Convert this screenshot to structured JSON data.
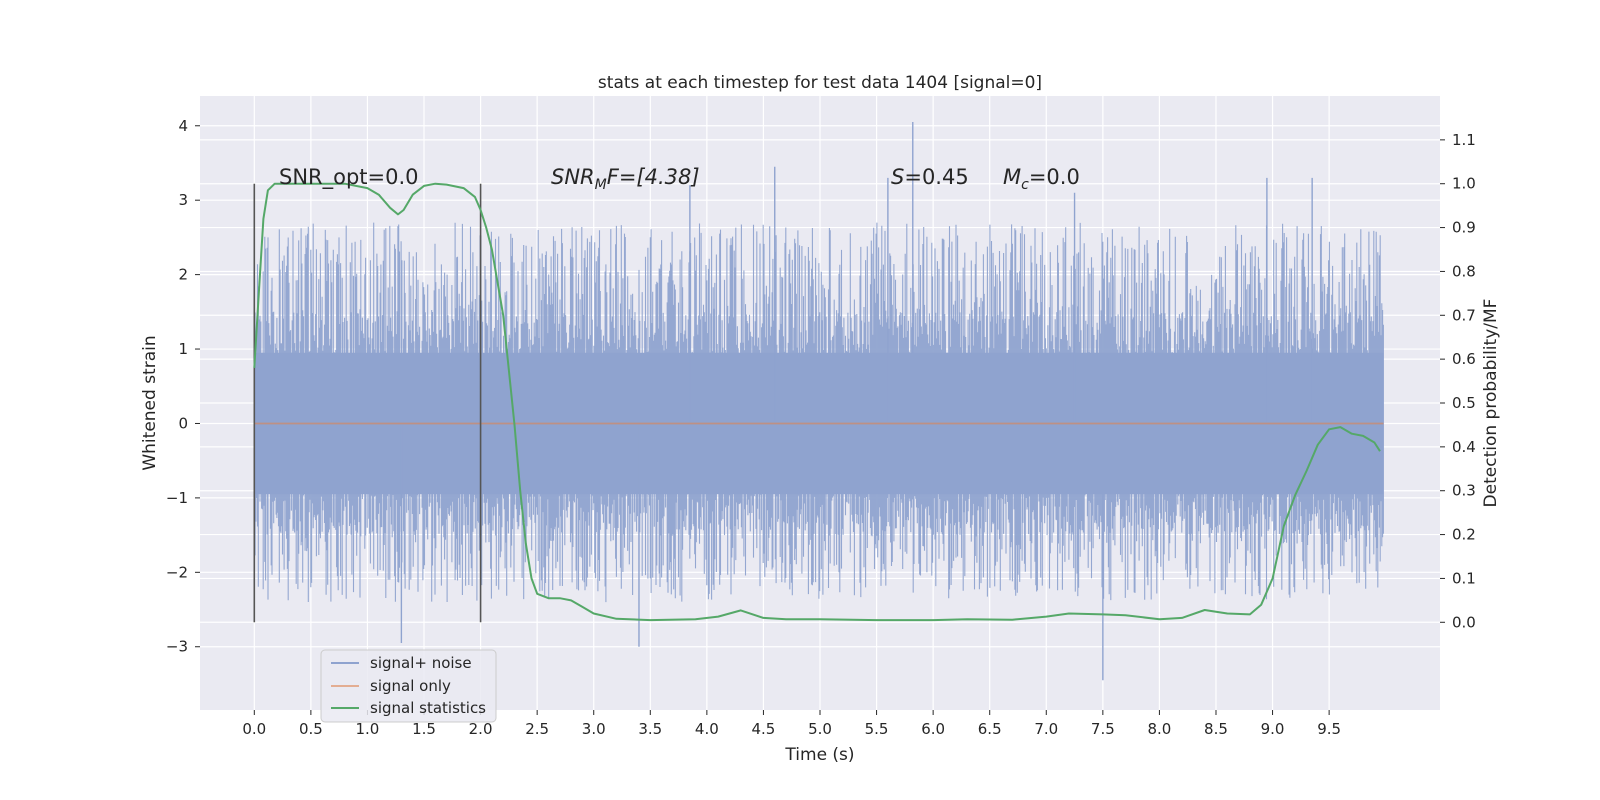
{
  "chart_data": {
    "type": "line",
    "title": "stats at each timestep for test data 1404 [signal=0]",
    "xlabel": "Time (s)",
    "ylabel": "Whitened strain",
    "ylabel_right": "Detection probability/MF",
    "xlim": [
      -0.48,
      10.48
    ],
    "ylim": [
      -3.85,
      4.4
    ],
    "ylim_right": [
      -0.2,
      1.2
    ],
    "xticks": [
      0.0,
      0.5,
      1.0,
      1.5,
      2.0,
      2.5,
      3.0,
      3.5,
      4.0,
      4.5,
      5.0,
      5.5,
      6.0,
      6.5,
      7.0,
      7.5,
      8.0,
      8.5,
      9.0,
      9.5
    ],
    "xtick_labels": [
      "0.0",
      "0.5",
      "1.0",
      "1.5",
      "2.0",
      "2.5",
      "3.0",
      "3.5",
      "4.0",
      "4.5",
      "5.0",
      "5.5",
      "6.0",
      "6.5",
      "7.0",
      "7.5",
      "8.0",
      "8.5",
      "9.0",
      "9.5"
    ],
    "yticks": [
      -3,
      -2,
      -1,
      0,
      1,
      2,
      3,
      4
    ],
    "ytick_labels": [
      "−3",
      "−2",
      "−1",
      "0",
      "1",
      "2",
      "3",
      "4"
    ],
    "yticks_right": [
      0.0,
      0.1,
      0.2,
      0.3,
      0.4,
      0.5,
      0.6,
      0.7,
      0.8,
      0.9,
      1.0,
      1.1
    ],
    "ytick_labels_right": [
      "0.0",
      "0.1",
      "0.2",
      "0.3",
      "0.4",
      "0.5",
      "0.6",
      "0.7",
      "0.8",
      "0.9",
      "1.0",
      "1.1"
    ],
    "grid": true,
    "legend_position": "lower-left",
    "background": "#eaeaf2",
    "colors": {
      "signal_noise": "#8fa3cf",
      "signal_only": "#dd8452",
      "statistics": "#55a868",
      "vlines": "#555555"
    },
    "annotations": {
      "snr_opt": "SNR_opt=0.0",
      "snr_mf_main": "SNR",
      "snr_mf_sub": "M",
      "snr_mf_rest": "F=[4.38]",
      "s_main": "S",
      "s_rest": "=0.45",
      "mc_main": "M",
      "mc_sub": "c",
      "mc_rest": "=0.0"
    },
    "series": [
      {
        "name": "signal+ noise",
        "kind": "noise_envelope",
        "x_range": [
          0.0,
          9.98
        ],
        "body_range": [
          -0.95,
          0.95
        ],
        "typical_range": [
          -1.5,
          1.5
        ],
        "outer_range": [
          -2.4,
          2.7
        ],
        "peaks": [
          {
            "x": 5.82,
            "y": 4.05
          },
          {
            "x": 7.5,
            "y": -3.45
          },
          {
            "x": 1.3,
            "y": -2.95
          },
          {
            "x": 3.4,
            "y": -3.0
          },
          {
            "x": 4.6,
            "y": 3.45
          },
          {
            "x": 9.35,
            "y": 3.3
          },
          {
            "x": 8.95,
            "y": 3.3
          },
          {
            "x": 5.6,
            "y": 3.3
          },
          {
            "x": 3.85,
            "y": 3.2
          },
          {
            "x": 7.25,
            "y": 3.1
          }
        ]
      },
      {
        "name": "signal only",
        "x": [
          0.0,
          9.98
        ],
        "y": [
          0.0,
          0.0
        ]
      },
      {
        "name": "signal statistics",
        "axis": "right",
        "x": [
          0.0,
          0.04,
          0.08,
          0.12,
          0.18,
          0.3,
          0.5,
          0.8,
          1.0,
          1.1,
          1.2,
          1.27,
          1.32,
          1.4,
          1.5,
          1.6,
          1.7,
          1.85,
          1.95,
          2.0,
          2.05,
          2.1,
          2.2,
          2.3,
          2.35,
          2.4,
          2.45,
          2.5,
          2.6,
          2.7,
          2.8,
          2.9,
          3.0,
          3.2,
          3.5,
          3.9,
          4.1,
          4.3,
          4.5,
          4.7,
          5.0,
          5.5,
          6.0,
          6.3,
          6.7,
          7.0,
          7.2,
          7.5,
          7.7,
          8.0,
          8.2,
          8.4,
          8.6,
          8.8,
          8.9,
          9.0,
          9.1,
          9.2,
          9.3,
          9.4,
          9.5,
          9.6,
          9.7,
          9.8,
          9.9,
          9.95
        ],
        "y": [
          0.58,
          0.75,
          0.92,
          0.985,
          1.0,
          1.0,
          1.0,
          1.0,
          0.99,
          0.975,
          0.945,
          0.93,
          0.94,
          0.975,
          0.995,
          1.0,
          0.998,
          0.99,
          0.97,
          0.94,
          0.9,
          0.85,
          0.7,
          0.45,
          0.3,
          0.18,
          0.1,
          0.065,
          0.055,
          0.055,
          0.05,
          0.035,
          0.02,
          0.008,
          0.005,
          0.007,
          0.013,
          0.027,
          0.01,
          0.007,
          0.007,
          0.005,
          0.005,
          0.007,
          0.006,
          0.013,
          0.02,
          0.018,
          0.016,
          0.007,
          0.01,
          0.028,
          0.02,
          0.018,
          0.04,
          0.1,
          0.22,
          0.29,
          0.345,
          0.405,
          0.44,
          0.445,
          0.43,
          0.425,
          0.41,
          0.39
        ]
      }
    ],
    "vlines": [
      0.0,
      2.0
    ]
  }
}
